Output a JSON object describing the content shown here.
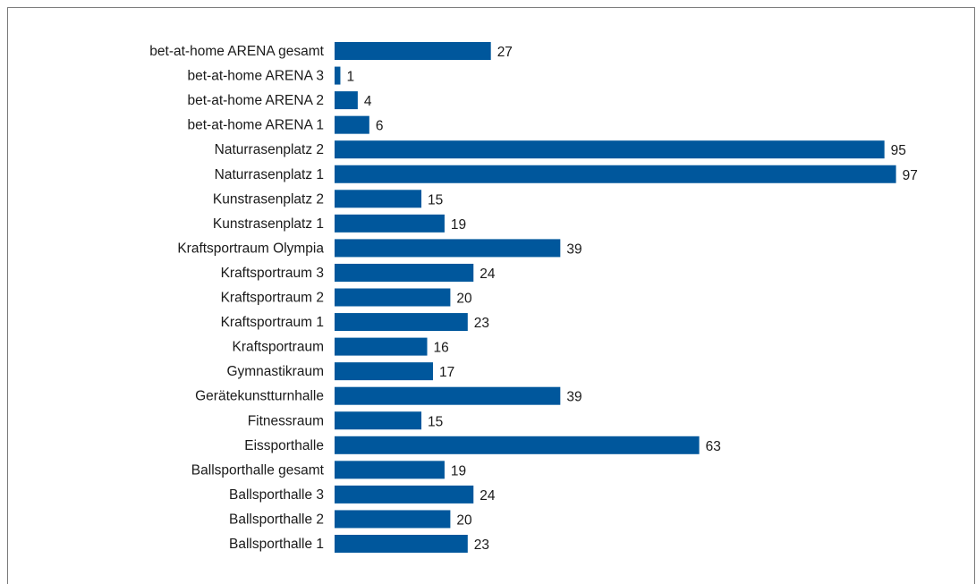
{
  "colors": {
    "bar": "#00579c",
    "text": "#1a1a1a",
    "frame": "#7a7a7a"
  },
  "chart_data": {
    "type": "bar",
    "orientation": "horizontal",
    "title": "",
    "xlabel": "",
    "ylabel": "",
    "xlim": [
      0,
      97
    ],
    "grid": false,
    "legend": "none",
    "categories": [
      "bet-at-home ARENA gesamt",
      "bet-at-home ARENA 3",
      "bet-at-home ARENA 2",
      "bet-at-home ARENA 1",
      "Naturrasenplatz 2",
      "Naturrasenplatz 1",
      "Kunstrasenplatz 2",
      "Kunstrasenplatz 1",
      "Kraftsportraum Olympia",
      "Kraftsportraum 3",
      "Kraftsportraum 2",
      "Kraftsportraum 1",
      "Kraftsportraum",
      "Gymnastikraum",
      "Gerätekunstturnhalle",
      "Fitnessraum",
      "Eissporthalle",
      "Ballsporthalle gesamt",
      "Ballsporthalle 3",
      "Ballsporthalle 2",
      "Ballsporthalle 1"
    ],
    "values": [
      27,
      1,
      4,
      6,
      95,
      97,
      15,
      19,
      39,
      24,
      20,
      23,
      16,
      17,
      39,
      15,
      63,
      19,
      24,
      20,
      23
    ]
  }
}
